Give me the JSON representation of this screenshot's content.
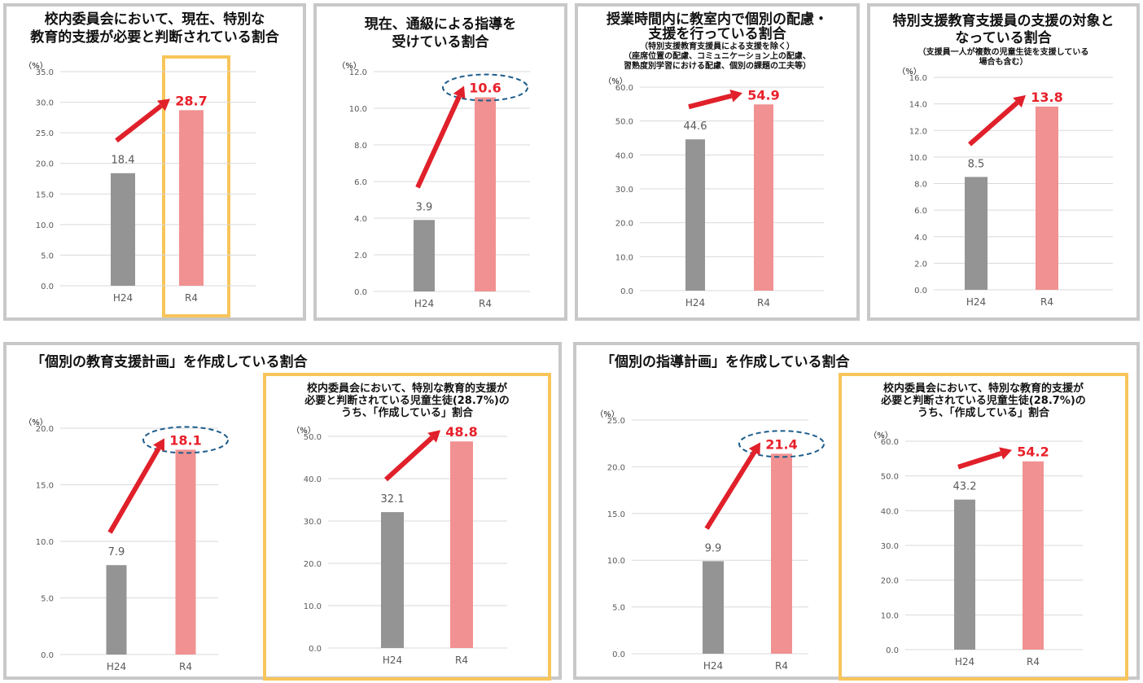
{
  "panels": {
    "p1": {
      "title1": "校内委員会において、現在、特別な",
      "title2": "教育的支援が必要と判断されている割合"
    },
    "p2": {
      "title1": "現在、通級による指導を",
      "title2": "受けている割合"
    },
    "p3": {
      "title1": "授業時間内に教室内で個別の配慮・",
      "title2": "支援を行っている割合",
      "sub1": "（特別支援教育支援員による支援を除く）",
      "sub2": "（座席位置の配慮、コミュニケーション上の配慮、",
      "sub3": "習熟度別学習における配慮、個別の課題の工夫等）"
    },
    "p4": {
      "title1": "特別支援教育支援員の支援の対象と",
      "title2": "なっている割合",
      "sub1": "（支援員一人が複数の児童生徒を支援している",
      "sub2": "場合も含む）"
    },
    "p5": {
      "title": "「個別の教育支援計画」を作成している割合",
      "inner1": "校内委員会において、特別な教育的支援が",
      "inner2": "必要と判断されている児童生徒(28.7%)の",
      "inner3": "うち、「作成している」割合"
    },
    "p6": {
      "title": "「個別の指導計画」を作成している割合",
      "inner1": "校内委員会において、特別な教育的支援が",
      "inner2": "必要と判断されている児童生徒(28.7%)の",
      "inner3": "うち、「作成している」割合"
    }
  },
  "colors": {
    "h24": "#949494",
    "r4": "#f19191",
    "highlight": "#e8202a",
    "arrow": "#e0202a",
    "ellipse": "#1d5d8c",
    "frame": "#f7c55a",
    "border": "#c8c8c8"
  },
  "chart_data": [
    {
      "id": "c1",
      "type": "bar",
      "categories": [
        "H24",
        "R4"
      ],
      "values": [
        18.4,
        28.7
      ],
      "ylabel": "（%）",
      "ylim": [
        0,
        35
      ],
      "yticks": [
        "0.0",
        "5.0",
        "10.0",
        "15.0",
        "20.0",
        "25.0",
        "30.0",
        "35.0"
      ],
      "value_labels": [
        "18.4",
        "28.7"
      ],
      "highlight": "R4 value (red)",
      "gridlines": true
    },
    {
      "id": "c2",
      "type": "bar",
      "categories": [
        "H24",
        "R4"
      ],
      "values": [
        3.9,
        10.6
      ],
      "ylabel": "（%）",
      "ylim": [
        0,
        12
      ],
      "yticks": [
        "0.0",
        "2.0",
        "4.0",
        "6.0",
        "8.0",
        "10.0",
        "12.0"
      ],
      "value_labels": [
        "3.9",
        "10.6"
      ],
      "highlight": "R4 value circled",
      "gridlines": true
    },
    {
      "id": "c3",
      "type": "bar",
      "categories": [
        "H24",
        "R4"
      ],
      "values": [
        44.6,
        54.9
      ],
      "ylabel": "（%）",
      "ylim": [
        0,
        60
      ],
      "yticks": [
        "0.0",
        "10.0",
        "20.0",
        "30.0",
        "40.0",
        "50.0",
        "60.0"
      ],
      "value_labels": [
        "44.6",
        "54.9"
      ],
      "highlight": "R4 value (red)",
      "gridlines": true
    },
    {
      "id": "c4",
      "type": "bar",
      "categories": [
        "H24",
        "R4"
      ],
      "values": [
        8.5,
        13.8
      ],
      "ylabel": "（%）",
      "ylim": [
        0,
        16
      ],
      "yticks": [
        "0.0",
        "2.0",
        "4.0",
        "6.0",
        "8.0",
        "10.0",
        "12.0",
        "14.0",
        "16.0"
      ],
      "value_labels": [
        "8.5",
        "13.8"
      ],
      "highlight": "R4 value (red)",
      "gridlines": true
    },
    {
      "id": "c5",
      "type": "bar",
      "categories": [
        "H24",
        "R4"
      ],
      "values": [
        7.9,
        18.1
      ],
      "ylabel": "（%）",
      "ylim": [
        0,
        20
      ],
      "yticks": [
        "0.0",
        "5.0",
        "10.0",
        "15.0",
        "20.0"
      ],
      "value_labels": [
        "7.9",
        "18.1"
      ],
      "highlight": "R4 value circled",
      "gridlines": true
    },
    {
      "id": "c6",
      "type": "bar",
      "categories": [
        "H24",
        "R4"
      ],
      "values": [
        32.1,
        48.8
      ],
      "ylabel": "（%）",
      "ylim": [
        0,
        50
      ],
      "yticks": [
        "0.0",
        "10.0",
        "20.0",
        "30.0",
        "40.0",
        "50.0"
      ],
      "value_labels": [
        "32.1",
        "48.8"
      ],
      "highlight": "R4 value (red)",
      "gridlines": true
    },
    {
      "id": "c7",
      "type": "bar",
      "categories": [
        "H24",
        "R4"
      ],
      "values": [
        9.9,
        21.4
      ],
      "ylabel": "（%）",
      "ylim": [
        0,
        25
      ],
      "yticks": [
        "0.0",
        "5.0",
        "10.0",
        "15.0",
        "20.0",
        "25.0"
      ],
      "value_labels": [
        "9.9",
        "21.4"
      ],
      "highlight": "R4 value circled",
      "gridlines": true
    },
    {
      "id": "c8",
      "type": "bar",
      "categories": [
        "H24",
        "R4"
      ],
      "values": [
        43.2,
        54.2
      ],
      "ylabel": "（%）",
      "ylim": [
        0,
        60
      ],
      "yticks": [
        "0.0",
        "10.0",
        "20.0",
        "30.0",
        "40.0",
        "50.0",
        "60.0"
      ],
      "value_labels": [
        "43.2",
        "54.2"
      ],
      "highlight": "R4 value (red)",
      "gridlines": true
    }
  ]
}
